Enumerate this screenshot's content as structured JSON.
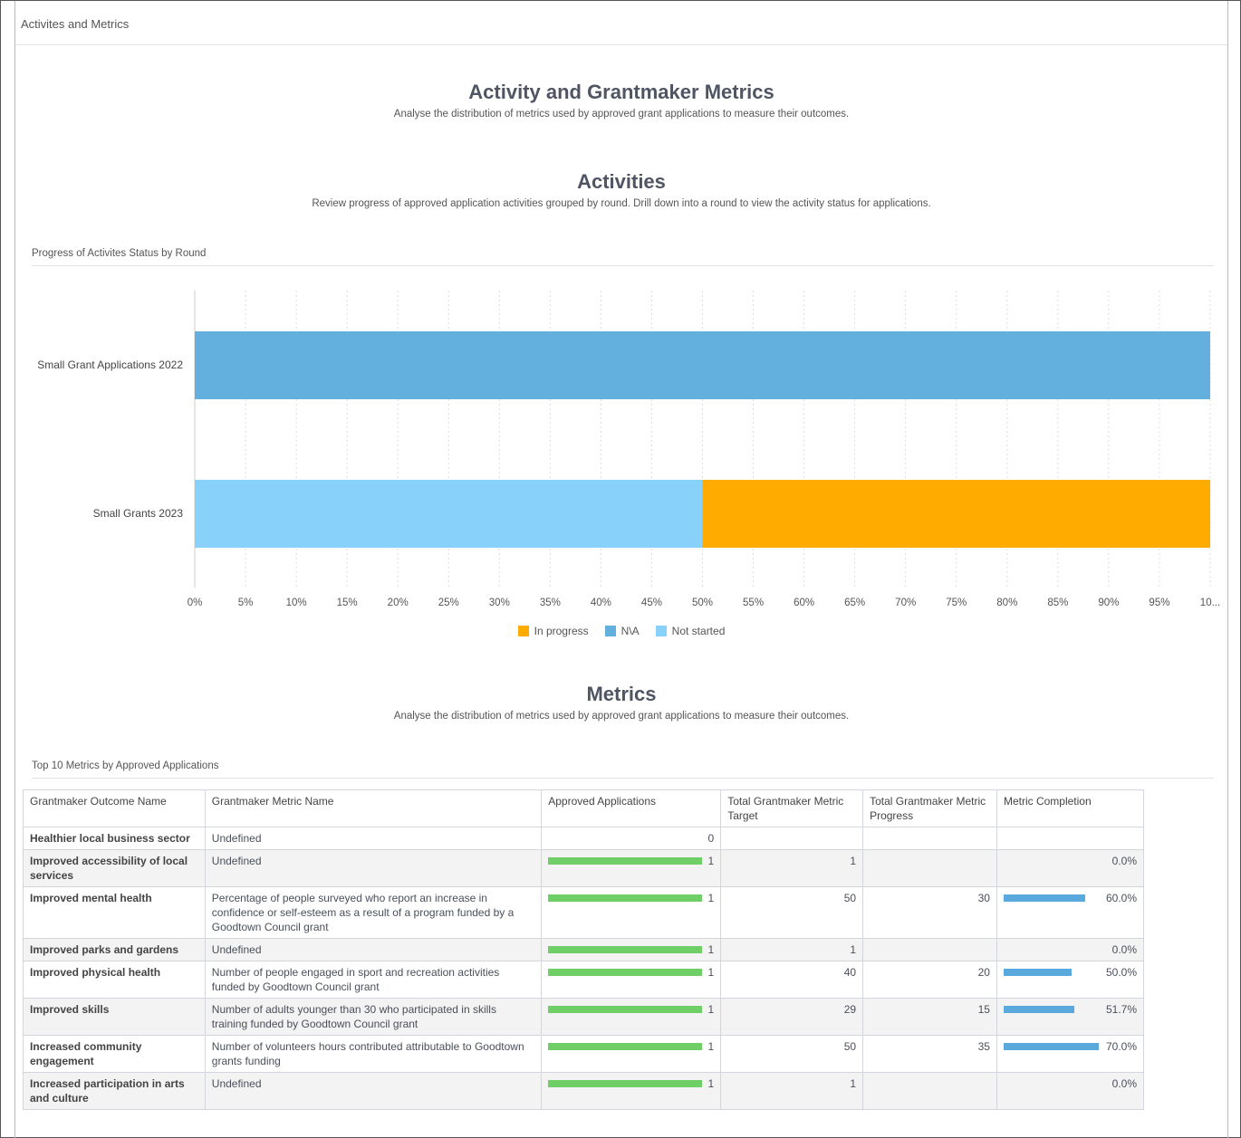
{
  "breadcrumb": "Activites and Metrics",
  "header": {
    "title": "Activity and Grantmaker Metrics",
    "subtitle": "Analyse the distribution of metrics used by approved grant applications to measure their outcomes."
  },
  "activities": {
    "title": "Activities",
    "subtitle": "Review progress of approved application activities grouped by round. Drill down into a round to view the activity status for applications.",
    "chart_caption": "Progress of Activites Status by Round"
  },
  "chart_data": {
    "type": "bar",
    "orientation": "horizontal",
    "stacked": "percent",
    "title": "Progress of Activites Status by Round",
    "categories": [
      "Small Grant Applications 2022",
      "Small Grants 2023"
    ],
    "series": [
      {
        "name": "Not started",
        "color": "#87d1fb",
        "values": [
          0,
          50
        ]
      },
      {
        "name": "In progress",
        "color": "#ffab00",
        "values": [
          0,
          50
        ]
      },
      {
        "name": "N\\A",
        "color": "#63b0df",
        "values": [
          100,
          0
        ]
      }
    ],
    "xticks": [
      "0%",
      "5%",
      "10%",
      "15%",
      "20%",
      "25%",
      "30%",
      "35%",
      "40%",
      "45%",
      "50%",
      "55%",
      "60%",
      "65%",
      "70%",
      "75%",
      "80%",
      "85%",
      "90%",
      "95%",
      "10..."
    ],
    "xlim": [
      0,
      100
    ],
    "legend": [
      {
        "name": "In progress",
        "color": "#ffab00"
      },
      {
        "name": "N\\A",
        "color": "#63b0df"
      },
      {
        "name": "Not started",
        "color": "#87d1fb"
      }
    ],
    "legend_position": "bottom"
  },
  "metrics": {
    "title": "Metrics",
    "subtitle": "Analyse the distribution of metrics used by approved grant applications to measure their outcomes.",
    "table_caption": "Top 10 Metrics by Approved Applications",
    "columns": [
      "Grantmaker Outcome Name",
      "Grantmaker Metric Name",
      "Approved Applications",
      "Total Grantmaker Metric Target",
      "Total Grantmaker Metric Progress",
      "Metric Completion"
    ],
    "rows": [
      {
        "outcome": "Healthier local business sector",
        "metric": "Undefined",
        "approved": "0",
        "target": "",
        "progress": "",
        "completion": ""
      },
      {
        "outcome": "Improved accessibility of local services",
        "metric": "Undefined",
        "approved": "1",
        "target": "1",
        "progress": "",
        "completion": "0.0%"
      },
      {
        "outcome": "Improved mental health",
        "metric": "Percentage of people surveyed who report an increase in confidence or self-esteem as a result of a program funded by a Goodtown Council grant",
        "approved": "1",
        "target": "50",
        "progress": "30",
        "completion": "60.0%"
      },
      {
        "outcome": "Improved parks and gardens",
        "metric": "Undefined",
        "approved": "1",
        "target": "1",
        "progress": "",
        "completion": "0.0%"
      },
      {
        "outcome": "Improved physical health",
        "metric": "Number of people engaged in sport and recreation activities funded by Goodtown Council grant",
        "approved": "1",
        "target": "40",
        "progress": "20",
        "completion": "50.0%"
      },
      {
        "outcome": "Improved skills",
        "metric": "Number of adults younger than 30 who participated in skills training funded by Goodtown Council grant",
        "approved": "1",
        "target": "29",
        "progress": "15",
        "completion": "51.7%"
      },
      {
        "outcome": "Increased community engagement",
        "metric": "Number of volunteers hours contributed attributable to Goodtown grants funding",
        "approved": "1",
        "target": "50",
        "progress": "35",
        "completion": "70.0%"
      },
      {
        "outcome": "Increased participation in arts and culture",
        "metric": "Undefined",
        "approved": "1",
        "target": "1",
        "progress": "",
        "completion": "0.0%"
      }
    ]
  }
}
